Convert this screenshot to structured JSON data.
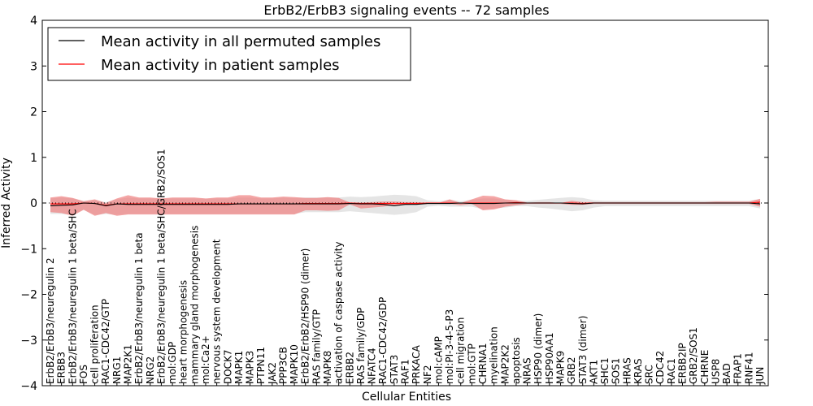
{
  "chart_data": {
    "type": "line",
    "title": "ErbB2/ErbB3 signaling events -- 72 samples",
    "xlabel": "Cellular Entities",
    "ylabel": "Inferred Activity",
    "ylim": [
      -4,
      4
    ],
    "yticks": [
      -4,
      -3,
      -2,
      -1,
      0,
      1,
      2,
      3,
      4
    ],
    "ytick_labels": [
      "−4",
      "−3",
      "−2",
      "−1",
      "0",
      "1",
      "2",
      "3",
      "4"
    ],
    "legend_position": "top-left",
    "categories": [
      "ErbB2/ErbB3/neuregulin 2",
      "ERBB3",
      "ErbB2/ErbB3/neuregulin 1 beta/SHC",
      "FOS",
      "cell proliferation",
      "RAC1-CDC42/GTP",
      "NRG1",
      "MAP2K1",
      "ErbB2/ErbB3/neuregulin 1 beta",
      "NRG2",
      "ErbB2/ErbB3/neuregulin 1 beta/SHC/GRB2/SOS1",
      "mol:GDP",
      "heart morphogenesis",
      "mammary gland morphogenesis",
      "mol:Ca2+",
      "nervous system development",
      "DOCK7",
      "MAPK1",
      "MAPK3",
      "PTPN11",
      "JAK2",
      "PPP3CB",
      "MAPK10",
      "ErbB2/ErbB2/HSP90 (dimer)",
      "RAS family/GTP",
      "MAPK8",
      "activation of caspase activity",
      "ERBB2",
      "RAS family/GDP",
      "NFATC4",
      "RAC1-CDC42/GDP",
      "STAT3",
      "RAF1",
      "PRKACA",
      "NF2",
      "mol:cAMP",
      "mol:PI-3-4-5-P3",
      "cell migration",
      "mol:GTP",
      "CHRNA1",
      "myelination",
      "MAP2K2",
      "apoptosis",
      "NRAS",
      "HSP90 (dimer)",
      "HSP90AA1",
      "MAPK9",
      "GRB2",
      "STAT3 (dimer)",
      "AKT1",
      "SHC1",
      "SOS1",
      "HRAS",
      "KRAS",
      "SRC",
      "CDC42",
      "RAC1",
      "ERBB2IP",
      "GRB2/SOS1",
      "CHRNE",
      "USP8",
      "BAD",
      "FRAP1",
      "RNF41",
      "JUN"
    ],
    "series": [
      {
        "name": "Mean activity in all permuted samples",
        "color": "#000000",
        "values": [
          -0.06,
          -0.05,
          -0.04,
          0.0,
          -0.01,
          -0.06,
          -0.02,
          -0.03,
          -0.03,
          -0.03,
          -0.03,
          -0.03,
          -0.03,
          -0.03,
          -0.03,
          -0.03,
          -0.03,
          -0.02,
          -0.02,
          -0.02,
          -0.02,
          -0.02,
          -0.02,
          -0.02,
          -0.02,
          -0.02,
          -0.02,
          -0.01,
          -0.02,
          -0.02,
          -0.03,
          -0.06,
          -0.03,
          -0.03,
          -0.01,
          -0.01,
          -0.01,
          0.0,
          -0.01,
          -0.01,
          -0.01,
          0.0,
          0.0,
          0.0,
          0.0,
          0.0,
          0.0,
          -0.01,
          -0.02,
          0.0,
          0.0,
          0.0,
          0.0,
          0.0,
          0.0,
          0.0,
          0.0,
          0.0,
          0.0,
          0.0,
          0.0,
          0.0,
          0.0,
          0.0,
          -0.02
        ]
      },
      {
        "name": "Mean activity in patient samples",
        "color": "#ff0000",
        "values": [
          -0.02,
          -0.02,
          -0.02,
          0.0,
          -0.01,
          -0.05,
          -0.02,
          -0.02,
          -0.02,
          -0.02,
          -0.02,
          -0.02,
          -0.02,
          -0.02,
          -0.02,
          -0.02,
          -0.02,
          -0.02,
          -0.02,
          -0.02,
          -0.02,
          -0.02,
          -0.02,
          -0.01,
          -0.01,
          -0.01,
          -0.01,
          0.0,
          -0.01,
          -0.01,
          -0.01,
          -0.01,
          -0.01,
          -0.01,
          0.0,
          0.0,
          0.0,
          0.0,
          0.0,
          0.0,
          0.0,
          0.0,
          0.01,
          0.0,
          0.0,
          0.0,
          0.0,
          0.0,
          -0.01,
          0.0,
          0.0,
          0.0,
          0.0,
          0.0,
          0.0,
          0.0,
          0.0,
          0.0,
          0.0,
          0.0,
          0.0,
          0.0,
          0.0,
          0.0,
          0.02
        ]
      }
    ],
    "patient_band": {
      "color": "#f08080",
      "upper": [
        0.12,
        0.15,
        0.11,
        0.04,
        0.08,
        0.0,
        0.1,
        0.17,
        0.12,
        0.12,
        0.1,
        0.12,
        0.12,
        0.12,
        0.1,
        0.12,
        0.12,
        0.17,
        0.17,
        0.12,
        0.12,
        0.14,
        0.13,
        0.11,
        0.11,
        0.13,
        0.11,
        0.01,
        0.01,
        0.02,
        0.03,
        0.03,
        0.02,
        0.02,
        0.0,
        0.0,
        0.08,
        0.0,
        0.08,
        0.16,
        0.15,
        0.08,
        0.06,
        0.01,
        0.02,
        0.02,
        0.0,
        0.05,
        0.02,
        0.02,
        0.02,
        0.02,
        0.02,
        0.02,
        0.02,
        0.02,
        0.02,
        0.02,
        0.02,
        0.02,
        0.03,
        0.03,
        0.03,
        0.03,
        0.09
      ],
      "lower": [
        -0.2,
        -0.22,
        -0.28,
        -0.15,
        -0.28,
        -0.22,
        -0.28,
        -0.25,
        -0.25,
        -0.25,
        -0.25,
        -0.25,
        -0.25,
        -0.25,
        -0.25,
        -0.25,
        -0.25,
        -0.25,
        -0.25,
        -0.25,
        -0.25,
        -0.25,
        -0.25,
        -0.16,
        -0.16,
        -0.17,
        -0.16,
        -0.03,
        -0.12,
        -0.1,
        -0.08,
        -0.04,
        -0.04,
        -0.03,
        -0.02,
        -0.02,
        -0.02,
        -0.05,
        -0.02,
        -0.16,
        -0.14,
        -0.08,
        -0.05,
        -0.02,
        -0.02,
        -0.02,
        -0.02,
        -0.04,
        -0.04,
        -0.02,
        -0.02,
        -0.02,
        -0.02,
        -0.02,
        -0.02,
        -0.02,
        -0.02,
        -0.02,
        -0.02,
        -0.02,
        -0.02,
        -0.02,
        -0.02,
        -0.02,
        -0.08
      ]
    },
    "permuted_band": {
      "color": "#d3d3d3",
      "upper": [
        0.1,
        0.12,
        0.1,
        0.04,
        0.06,
        0.02,
        0.08,
        0.12,
        0.1,
        0.1,
        0.09,
        0.1,
        0.1,
        0.1,
        0.09,
        0.1,
        0.1,
        0.12,
        0.12,
        0.1,
        0.1,
        0.12,
        0.11,
        0.12,
        0.12,
        0.12,
        0.12,
        0.14,
        0.13,
        0.14,
        0.16,
        0.18,
        0.17,
        0.15,
        0.06,
        0.04,
        0.07,
        0.04,
        0.07,
        0.1,
        0.1,
        0.07,
        0.05,
        0.05,
        0.07,
        0.09,
        0.11,
        0.13,
        0.11,
        0.06,
        0.05,
        0.05,
        0.05,
        0.05,
        0.05,
        0.05,
        0.05,
        0.05,
        0.05,
        0.05,
        0.05,
        0.05,
        0.05,
        0.05,
        0.09
      ],
      "lower": [
        -0.24,
        -0.24,
        -0.26,
        -0.15,
        -0.26,
        -0.24,
        -0.26,
        -0.24,
        -0.24,
        -0.24,
        -0.24,
        -0.24,
        -0.24,
        -0.24,
        -0.24,
        -0.24,
        -0.24,
        -0.24,
        -0.24,
        -0.24,
        -0.24,
        -0.24,
        -0.24,
        -0.2,
        -0.2,
        -0.2,
        -0.2,
        -0.18,
        -0.2,
        -0.22,
        -0.24,
        -0.26,
        -0.24,
        -0.2,
        -0.08,
        -0.06,
        -0.08,
        -0.08,
        -0.08,
        -0.14,
        -0.12,
        -0.1,
        -0.07,
        -0.07,
        -0.1,
        -0.12,
        -0.15,
        -0.18,
        -0.16,
        -0.1,
        -0.07,
        -0.07,
        -0.07,
        -0.07,
        -0.07,
        -0.07,
        -0.07,
        -0.07,
        -0.07,
        -0.07,
        -0.07,
        -0.07,
        -0.07,
        -0.07,
        -0.12
      ]
    }
  }
}
